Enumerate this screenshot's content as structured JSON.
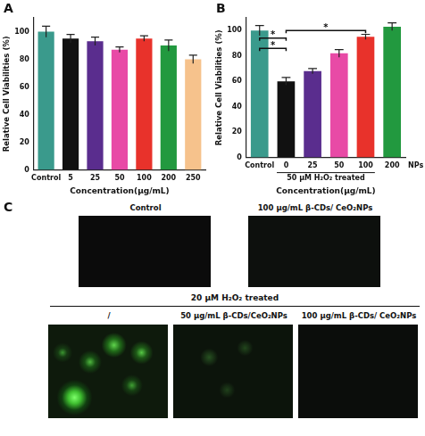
{
  "chart_data": [
    {
      "panel": "A",
      "type": "bar",
      "categories": [
        "Control",
        "5",
        "25",
        "50",
        "100",
        "200",
        "250"
      ],
      "values": [
        100,
        95,
        93,
        87,
        95,
        90,
        80
      ],
      "errors": [
        4,
        3,
        3,
        2,
        2,
        4,
        3
      ],
      "colors": [
        "#3a9a8c",
        "#111111",
        "#5a2d8e",
        "#e84aa6",
        "#e8322b",
        "#22993f",
        "#f6c28c"
      ],
      "x_label": "Concentration(μg/mL)",
      "y_label": "Relative Cell Viabilities (%)",
      "ylim": [
        0,
        110
      ],
      "yticks": [
        0,
        20,
        40,
        60,
        80,
        100
      ],
      "grid": false
    },
    {
      "panel": "B",
      "type": "bar",
      "categories": [
        "Control",
        "0",
        "25",
        "50",
        "100",
        "200"
      ],
      "values": [
        100,
        60,
        68,
        82,
        95,
        103
      ],
      "errors": [
        4,
        3,
        2,
        3,
        2,
        3
      ],
      "colors": [
        "#3a9a8c",
        "#111111",
        "#5a2d8e",
        "#e84aa6",
        "#e8322b",
        "#22993f"
      ],
      "x_label": "Concentration(μg/mL)",
      "y_label": "Relative Cell Viabilities (%)",
      "x_end_label": "NPs",
      "group_label": {
        "text": "50 μM H₂O₂ treated",
        "from": "0",
        "to": "100"
      },
      "significance": [
        {
          "from": "Control",
          "to": "0",
          "y": 86,
          "label": "*"
        },
        {
          "from": "Control",
          "to": "0",
          "y": 94,
          "label": "*"
        },
        {
          "from": "0",
          "to": "100",
          "y": 100,
          "label": "*"
        }
      ],
      "ylim": [
        0,
        110
      ],
      "yticks": [
        0,
        20,
        40,
        60,
        80,
        100
      ],
      "grid": false
    }
  ],
  "panel_c": {
    "panel": "C",
    "top_row": [
      "Control",
      "100 μg/mL  β-CDs/ CeO₂NPs"
    ],
    "treatment": "20 μM  H₂O₂  treated",
    "bottom_row": [
      "/",
      "50 μg/mL β-CDs/CeO₂NPs",
      "100 μg/mL β-CDs/ CeO₂NPs"
    ]
  }
}
